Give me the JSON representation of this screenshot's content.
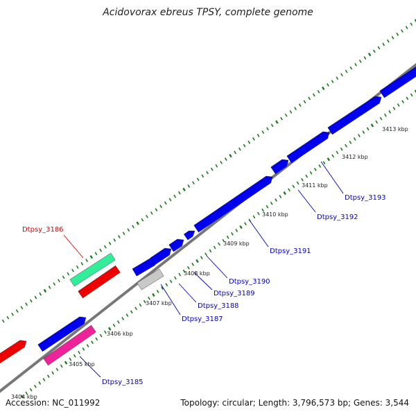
{
  "title": "Acidovorax ebreus TPSY, complete genome",
  "footer": {
    "accession": "Accession: NC_011992",
    "summary": "Topology: circular; Length: 3,796,573 bp; Genes: 3,544"
  },
  "colors": {
    "backbone": "#888888",
    "tick": "#1a7a1a",
    "forward_cds": "#0000ee",
    "reverse_red": "#ee0000",
    "rrna_teal": "#33ee99",
    "magenta": "#ee2299",
    "gray": "#c8c8c8",
    "label_blue": "#0000cc",
    "label_red": "#dd0000"
  },
  "scale_labels": [
    "3404 kbp",
    "3405 kbp",
    "3406 kbp",
    "3407 kbp",
    "3408 kbp",
    "3409 kbp",
    "3410 kbp",
    "3411 kbp",
    "3412 kbp",
    "3413 kbp"
  ],
  "gene_labels": [
    {
      "name": "Dtpsy_3185",
      "color": "label_blue"
    },
    {
      "name": "Dtpsy_3186",
      "color": "label_red"
    },
    {
      "name": "Dtpsy_3187",
      "color": "label_blue"
    },
    {
      "name": "Dtpsy_3188",
      "color": "label_blue"
    },
    {
      "name": "Dtpsy_3189",
      "color": "label_blue"
    },
    {
      "name": "Dtpsy_3190",
      "color": "label_blue"
    },
    {
      "name": "Dtpsy_3191",
      "color": "label_blue"
    },
    {
      "name": "Dtpsy_3192",
      "color": "label_blue"
    },
    {
      "name": "Dtpsy_3193",
      "color": "label_blue"
    }
  ]
}
